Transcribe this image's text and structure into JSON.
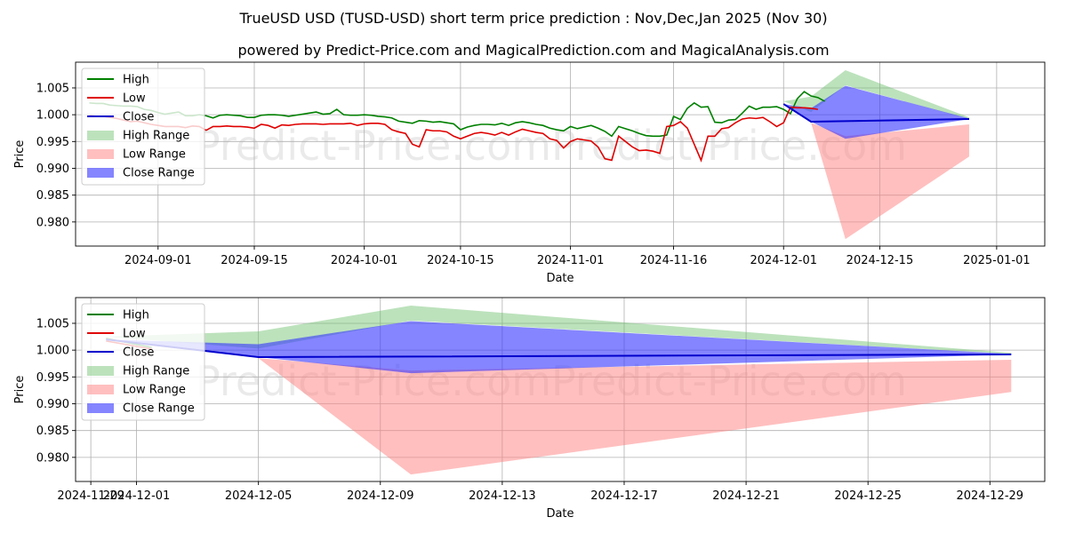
{
  "title": "TrueUSD USD (TUSD-USD) short term price prediction : Nov,Dec,Jan 2025 (Nov 30)",
  "subtitle": "powered by Predict-Price.com and MagicalPrediction.com and MagicalAnalysis.com",
  "watermark": "Predict-Price.com",
  "colors": {
    "high": "#008000",
    "low": "#e00000",
    "close": "#0000cc",
    "high_range": "#6abf6a",
    "low_range": "#ff8080",
    "close_range": "#3333ff"
  },
  "chart_data": [
    {
      "type": "line",
      "xlabel": "Date",
      "ylabel": "Price",
      "x_start": "2024-08-22",
      "x_step_days": 1,
      "xlim_days": [
        -2,
        139
      ],
      "ylim": [
        0.9755,
        1.0098
      ],
      "yticks": [
        0.98,
        0.985,
        0.99,
        0.995,
        1.0,
        1.005
      ],
      "ytick_labels": [
        "0.980",
        "0.985",
        "0.990",
        "0.995",
        "1.000",
        "1.005"
      ],
      "xticks_days": [
        10,
        24,
        40,
        54,
        70,
        85,
        101,
        115,
        132
      ],
      "xtick_labels": [
        "2024-09-01",
        "2024-09-15",
        "2024-10-01",
        "2024-10-15",
        "2024-11-01",
        "2024-11-16",
        "2024-12-01",
        "2024-12-15",
        "2025-01-01"
      ],
      "legend": [
        "High",
        "Low",
        "Close",
        "High Range",
        "Low Range",
        "Close Range"
      ],
      "legend_position": "top-left",
      "grid": true,
      "series": [
        {
          "name": "High",
          "values": [
            1.0022,
            1.0021,
            1.0021,
            1.0018,
            1.0017,
            1.0016,
            1.0016,
            1.0015,
            1.001,
            1.0008,
            1.0004,
            1.0001,
            1.0003,
            1.0005,
            0.9998,
            0.9998,
            1.0,
            0.9998,
            0.9994,
            0.9999,
            1.0,
            0.9999,
            0.9998,
            0.9995,
            0.9995,
            0.9999,
            1.0,
            1.0,
            0.9999,
            0.9997,
            0.9999,
            1.0001,
            1.0003,
            1.0005,
            1.0001,
            1.0002,
            1.001,
            1.0,
            0.9999,
            0.9999,
            1.0,
            0.9999,
            0.9997,
            0.9996,
            0.9994,
            0.9988,
            0.9986,
            0.9984,
            0.9989,
            0.9988,
            0.9986,
            0.9987,
            0.9985,
            0.9983,
            0.9972,
            0.9977,
            0.998,
            0.9982,
            0.9982,
            0.9981,
            0.9984,
            0.998,
            0.9985,
            0.9987,
            0.9985,
            0.9982,
            0.998,
            0.9975,
            0.9972,
            0.997,
            0.9978,
            0.9974,
            0.9977,
            0.998,
            0.9975,
            0.9969,
            0.996,
            0.9978,
            0.9974,
            0.997,
            0.9965,
            0.9961,
            0.996,
            0.996,
            0.9962,
            0.9997,
            0.9991,
            1.0012,
            1.0022,
            1.0014,
            1.0015,
            0.9986,
            0.9985,
            0.999,
            0.9991,
            1.0003,
            1.0016,
            1.001,
            1.0014,
            1.0014,
            1.0015,
            1.001,
            1.0002,
            1.003,
            1.0043,
            1.0035,
            1.0032,
            1.0025
          ]
        },
        {
          "name": "Low",
          "values": [
            0.9999,
            0.9997,
            0.9997,
            0.9995,
            0.9993,
            0.999,
            0.9987,
            0.9988,
            0.9985,
            0.9982,
            0.998,
            0.9978,
            0.9978,
            0.9978,
            0.9976,
            0.9979,
            0.9978,
            0.9971,
            0.9978,
            0.9978,
            0.9979,
            0.9978,
            0.9978,
            0.9977,
            0.9975,
            0.9982,
            0.998,
            0.9975,
            0.9981,
            0.998,
            0.9982,
            0.9983,
            0.9983,
            0.9983,
            0.9982,
            0.9983,
            0.9983,
            0.9983,
            0.9984,
            0.998,
            0.9983,
            0.9984,
            0.9984,
            0.9982,
            0.9972,
            0.9968,
            0.9965,
            0.9945,
            0.994,
            0.9972,
            0.997,
            0.997,
            0.9968,
            0.996,
            0.9955,
            0.996,
            0.9965,
            0.9967,
            0.9965,
            0.9962,
            0.9967,
            0.9962,
            0.9968,
            0.9973,
            0.997,
            0.9967,
            0.9965,
            0.9955,
            0.9952,
            0.9938,
            0.995,
            0.9955,
            0.9953,
            0.9951,
            0.994,
            0.9918,
            0.9915,
            0.996,
            0.995,
            0.994,
            0.9933,
            0.9934,
            0.9932,
            0.9928,
            0.9978,
            0.998,
            0.9987,
            0.9975,
            0.9945,
            0.9915,
            0.996,
            0.996,
            0.9974,
            0.9976,
            0.9985,
            0.9992,
            0.9994,
            0.9993,
            0.9995,
            0.9987,
            0.9978,
            0.9985,
            1.0014,
            1.0013,
            1.0013,
            1.0012,
            1.001
          ]
        }
      ],
      "ranges": [
        {
          "name": "High Range",
          "x_days": [
            101,
            105,
            110,
            128
          ],
          "upper": [
            1.0025,
            1.0034,
            1.0083,
            0.9995
          ],
          "lower": [
            1.0025,
            1.0005,
            1.0055,
            0.9992
          ]
        },
        {
          "name": "Low Range",
          "x_days": [
            101,
            105,
            110,
            128
          ],
          "upper": [
            1.0015,
            0.9985,
            0.996,
            0.9982
          ],
          "lower": [
            1.0015,
            0.9985,
            0.9768,
            0.9922
          ]
        },
        {
          "name": "Close Range",
          "x_days": [
            101,
            105,
            110,
            128
          ],
          "upper": [
            1.002,
            1.0012,
            1.0054,
            0.9993
          ],
          "lower": [
            1.002,
            0.9987,
            0.9955,
            0.9992
          ]
        }
      ],
      "close_line": {
        "x_days": [
          101,
          105,
          128
        ],
        "values": [
          1.002,
          0.9987,
          0.9992
        ]
      }
    },
    {
      "type": "line",
      "xlabel": "Date",
      "ylabel": "Price",
      "x_start": "2024-11-29",
      "xlim_days": [
        0,
        31.8
      ],
      "ylim": [
        0.9755,
        1.0098
      ],
      "yticks": [
        0.98,
        0.985,
        0.99,
        0.995,
        1.0,
        1.005
      ],
      "ytick_labels": [
        "0.980",
        "0.985",
        "0.990",
        "0.995",
        "1.000",
        "1.005"
      ],
      "xticks_days": [
        0.5,
        2,
        6,
        10,
        14,
        18,
        22,
        26,
        30
      ],
      "xtick_labels": [
        "2024-11-29",
        "2024-12-01",
        "2024-12-05",
        "2024-12-09",
        "2024-12-13",
        "2024-12-17",
        "2024-12-21",
        "2024-12-25",
        "2024-12-29"
      ],
      "legend": [
        "High",
        "Low",
        "Close",
        "High Range",
        "Low Range",
        "Close Range"
      ],
      "legend_position": "top-left",
      "grid": true,
      "series": [
        {
          "name": "High",
          "x_days": [
            1,
            2.5
          ],
          "values": [
            1.0022,
            1.0005
          ]
        },
        {
          "name": "Low",
          "x_days": [
            1,
            2.5
          ],
          "values": [
            1.0017,
            1.0002
          ]
        }
      ],
      "ranges": [
        {
          "name": "High Range",
          "x_days": [
            1,
            6,
            11,
            30.7
          ],
          "upper": [
            1.0025,
            1.0035,
            1.0083,
            0.9995
          ],
          "lower": [
            1.0025,
            1.0003,
            1.0055,
            0.9993
          ]
        },
        {
          "name": "Low Range",
          "x_days": [
            1,
            6,
            11,
            30.7
          ],
          "upper": [
            1.0015,
            0.9985,
            0.9962,
            0.9982
          ],
          "lower": [
            1.0015,
            0.9985,
            0.9768,
            0.9922
          ]
        },
        {
          "name": "Close Range",
          "x_days": [
            1,
            6,
            11,
            30.7
          ],
          "upper": [
            1.002,
            1.0011,
            1.0054,
            0.9993
          ],
          "lower": [
            1.002,
            0.9987,
            0.9957,
            0.9992
          ]
        }
      ],
      "close_line": {
        "x_days": [
          1,
          6,
          30.7
        ],
        "values": [
          1.002,
          0.9987,
          0.9992
        ]
      }
    }
  ]
}
